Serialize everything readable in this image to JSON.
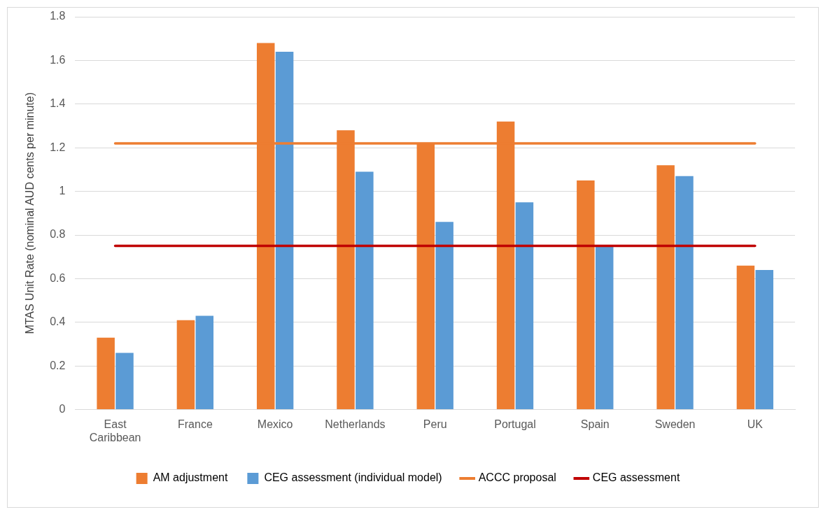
{
  "chart_data": {
    "type": "bar",
    "ylabel": "MTAS Unit Rate (nominal AUD cents per minute)",
    "categories": [
      "East Caribbean",
      "France",
      "Mexico",
      "Netherlands",
      "Peru",
      "Portugal",
      "Spain",
      "Sweden",
      "UK"
    ],
    "series": [
      {
        "name": "AM adjustment",
        "color": "#ed7d31",
        "values": [
          0.33,
          0.41,
          1.68,
          1.28,
          1.22,
          1.32,
          1.05,
          1.12,
          0.66
        ]
      },
      {
        "name": "CEG assessment (individual model)",
        "color": "#5b9bd5",
        "values": [
          0.26,
          0.43,
          1.64,
          1.09,
          0.86,
          0.95,
          0.75,
          1.07,
          0.64
        ]
      },
      {
        "name": "ACCC proposal",
        "type": "line",
        "color": "#ed7d31",
        "values": [
          1.22,
          1.22,
          1.22,
          1.22,
          1.22,
          1.22,
          1.22,
          1.22,
          1.22
        ]
      },
      {
        "name": "CEG assessment",
        "type": "line",
        "color": "#c00000",
        "values": [
          0.75,
          0.75,
          0.75,
          0.75,
          0.75,
          0.75,
          0.75,
          0.75,
          0.75
        ]
      }
    ],
    "ylim": [
      0,
      1.8
    ],
    "yticks": [
      0,
      0.2,
      0.4,
      0.6,
      0.8,
      1,
      1.2,
      1.4,
      1.6,
      1.8
    ],
    "grid": "y",
    "legend": "bottom",
    "marker": "none"
  }
}
